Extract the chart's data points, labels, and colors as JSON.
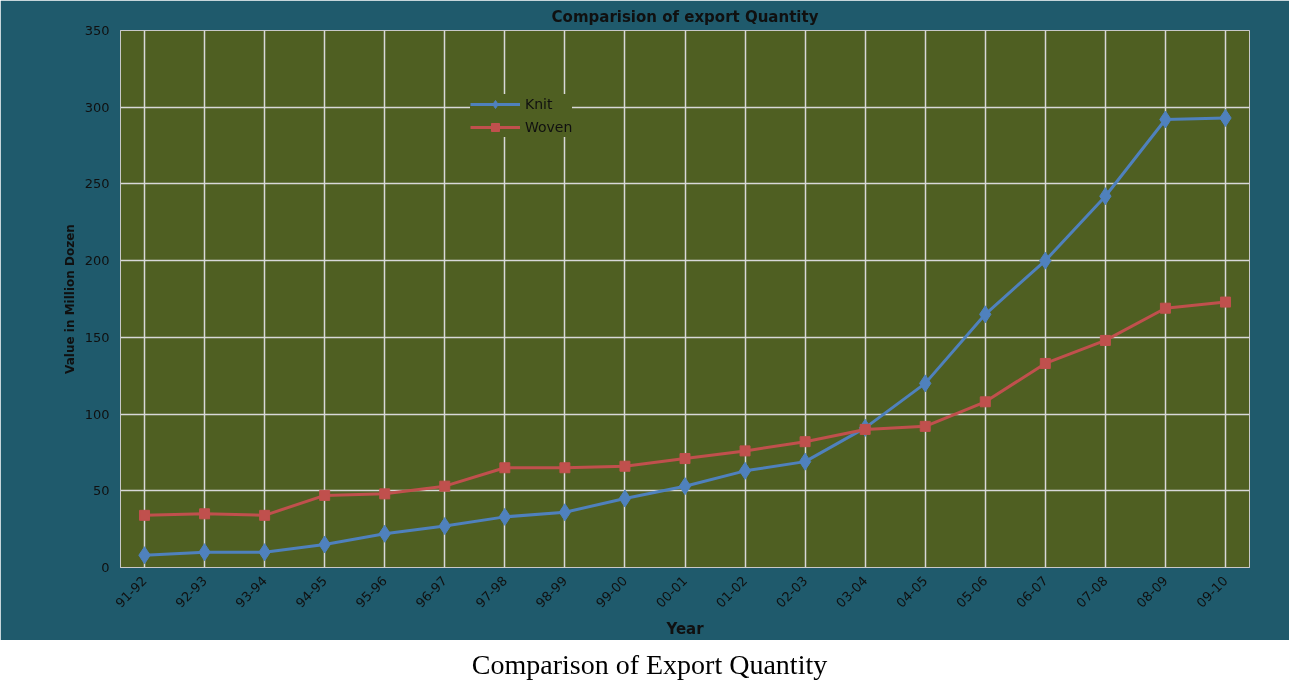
{
  "chart_data": {
    "type": "line",
    "title": "Comparision of export Quantity",
    "xlabel": "Year",
    "ylabel": "Value in Million Dozen",
    "categories": [
      "91-92",
      "92-93",
      "93-94",
      "94-95",
      "95-96",
      "96-97",
      "97-98",
      "98-99",
      "99-00",
      "00-01",
      "01-02",
      "02-03",
      "03-04",
      "04-05",
      "05-06",
      "06-07",
      "07-08",
      "08-09",
      "09-10"
    ],
    "series": [
      {
        "name": "Knit",
        "color": "#4f81bd",
        "marker": "diamond",
        "values": [
          8,
          10,
          10,
          15,
          22,
          27,
          33,
          36,
          45,
          53,
          63,
          69,
          91,
          120,
          165,
          200,
          242,
          292,
          293
        ]
      },
      {
        "name": "Woven",
        "color": "#c0504d",
        "marker": "square",
        "values": [
          34,
          35,
          34,
          47,
          48,
          53,
          65,
          65,
          66,
          71,
          76,
          82,
          90,
          92,
          108,
          133,
          148,
          169,
          173
        ]
      }
    ],
    "ylim": [
      0,
      350
    ],
    "yticks": [
      0,
      50,
      100,
      150,
      200,
      250,
      300,
      350
    ],
    "grid": true,
    "legend": "top",
    "annotations": [
      "Comparison of Export Quantity"
    ]
  }
}
